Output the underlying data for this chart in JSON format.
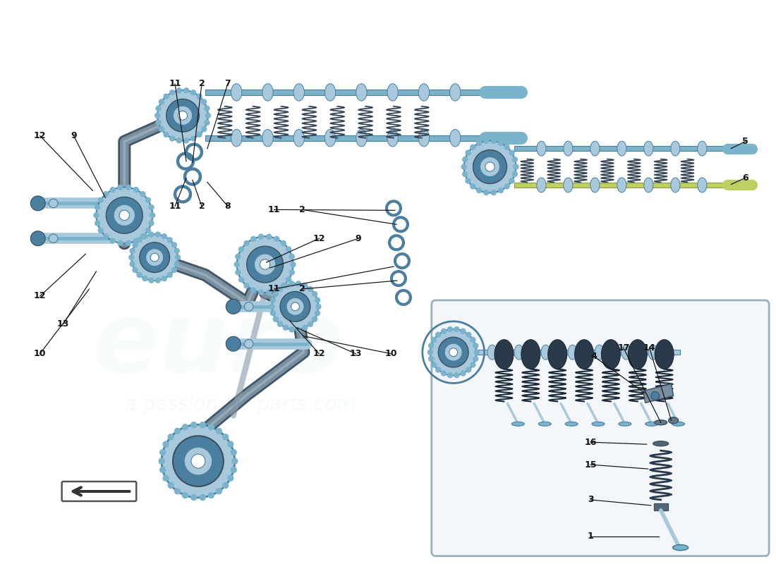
{
  "bg_color": "#ffffff",
  "fig_width": 11.0,
  "fig_height": 8.0,
  "blue": "#7ab4cc",
  "dark_blue": "#4a7fa0",
  "light_blue": "#a8c8dc",
  "gray": "#7a8fa0",
  "dark_gray": "#3a5060",
  "yellow_green": "#c0d060",
  "chain_color": "#7890a0",
  "box_bg": "#f4f7fa",
  "box_border": "#9ab0c0",
  "label_color": "#111111",
  "fs": 9
}
